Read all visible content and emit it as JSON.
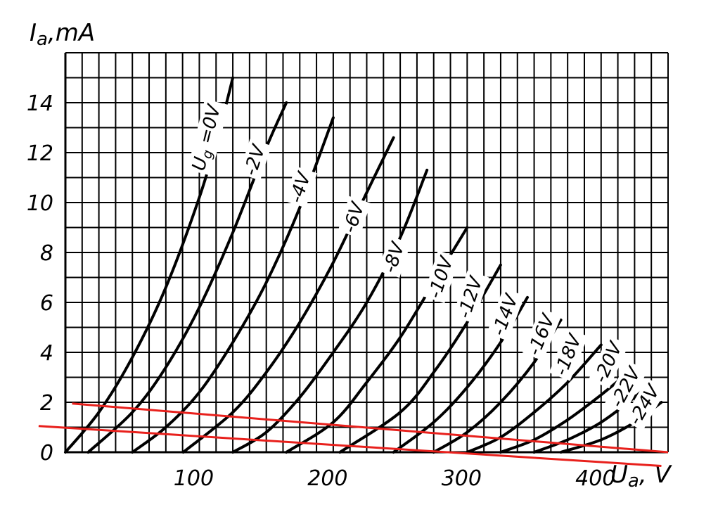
{
  "chart_data": {
    "type": "line",
    "title": "",
    "xlabel": "U",
    "xlabel_sub": "a",
    "xlabel_unit": ", V",
    "ylabel": "I",
    "ylabel_sub": "a",
    "ylabel_unit": ",mA",
    "xlim": [
      0,
      450
    ],
    "ylim": [
      0,
      16
    ],
    "grid": true,
    "x_ticks": [
      {
        "value": 100,
        "label": "100"
      },
      {
        "value": 200,
        "label": "200"
      },
      {
        "value": 300,
        "label": "300"
      },
      {
        "value": 400,
        "label": "400"
      }
    ],
    "y_ticks": [
      {
        "value": 0,
        "label": "0"
      },
      {
        "value": 2,
        "label": "2"
      },
      {
        "value": 4,
        "label": "4"
      },
      {
        "value": 6,
        "label": "6"
      },
      {
        "value": 8,
        "label": "8"
      },
      {
        "value": 10,
        "label": "10"
      },
      {
        "value": 12,
        "label": "12"
      },
      {
        "value": 14,
        "label": "14"
      }
    ],
    "series": [
      {
        "name": "Ug =0V",
        "name_prefix": "U",
        "name_sub": "g",
        "name_rest": " =0V",
        "label_at": [
          105,
          12.6
        ],
        "label_angle": -76,
        "x": [
          0,
          25,
          50,
          75,
          100,
          115,
          125
        ],
        "y": [
          0,
          1.6,
          3.8,
          6.6,
          10.2,
          12.9,
          15.0
        ]
      },
      {
        "name": "-2V",
        "label_at": [
          141,
          11.7
        ],
        "label_angle": -72,
        "x": [
          17,
          50,
          75,
          100,
          125,
          150,
          165
        ],
        "y": [
          0,
          1.6,
          3.4,
          5.8,
          8.8,
          12.2,
          14.0
        ]
      },
      {
        "name": "-4V",
        "label_at": [
          175,
          10.6
        ],
        "label_angle": -72,
        "x": [
          50,
          75,
          100,
          125,
          150,
          175,
          200
        ],
        "y": [
          0,
          1.0,
          2.4,
          4.4,
          6.8,
          9.8,
          13.4
        ]
      },
      {
        "name": "-6V",
        "label_at": [
          215,
          9.4
        ],
        "label_angle": -72,
        "x": [
          88,
          125,
          150,
          175,
          200,
          225,
          245
        ],
        "y": [
          0,
          1.6,
          3.2,
          5.2,
          7.6,
          10.4,
          12.6
        ]
      },
      {
        "name": "-8V",
        "label_at": [
          245,
          7.8
        ],
        "label_angle": -72,
        "x": [
          125,
          150,
          175,
          200,
          225,
          250,
          270
        ],
        "y": [
          0,
          0.8,
          2.2,
          4.0,
          6.0,
          8.6,
          11.3
        ]
      },
      {
        "name": "-10V",
        "label_at": [
          280,
          7.0
        ],
        "label_angle": -72,
        "x": [
          165,
          200,
          225,
          250,
          275,
          300
        ],
        "y": [
          0,
          1.2,
          2.8,
          4.6,
          6.8,
          9.0
        ]
      },
      {
        "name": "-12V",
        "label_at": [
          302,
          6.2
        ],
        "label_angle": -72,
        "x": [
          205,
          250,
          275,
          300,
          325
        ],
        "y": [
          0,
          1.6,
          3.2,
          5.2,
          7.5
        ]
      },
      {
        "name": "-14V",
        "label_at": [
          328,
          5.5
        ],
        "label_angle": -70,
        "x": [
          245,
          275,
          300,
          325,
          345
        ],
        "y": [
          0,
          1.2,
          2.6,
          4.4,
          6.2
        ]
      },
      {
        "name": "-16V",
        "label_at": [
          355,
          4.7
        ],
        "label_angle": -68,
        "x": [
          275,
          300,
          325,
          350,
          370
        ],
        "y": [
          0,
          0.8,
          2.0,
          3.6,
          5.3
        ]
      },
      {
        "name": "-18V",
        "label_at": [
          375,
          3.9
        ],
        "label_angle": -68,
        "x": [
          300,
          325,
          350,
          375,
          400
        ],
        "y": [
          0,
          0.6,
          1.6,
          2.8,
          4.3
        ]
      },
      {
        "name": "-20V",
        "label_at": [
          405,
          3.6
        ],
        "label_angle": -66,
        "x": [
          325,
          350,
          375,
          400,
          425
        ],
        "y": [
          0,
          0.5,
          1.3,
          2.3,
          3.4
        ]
      },
      {
        "name": "-22V",
        "label_at": [
          418,
          2.6
        ],
        "label_angle": -62,
        "x": [
          350,
          375,
          400,
          425,
          435
        ],
        "y": [
          0,
          0.5,
          1.2,
          2.2,
          2.7
        ]
      },
      {
        "name": "-24V",
        "label_at": [
          432,
          1.9
        ],
        "label_angle": -60,
        "x": [
          370,
          400,
          425,
          445
        ],
        "y": [
          0,
          0.5,
          1.2,
          2.0
        ]
      }
    ],
    "overlay_lines": [
      {
        "color": "#e8201c",
        "x": [
          5,
          450
        ],
        "y": [
          1.95,
          0
        ]
      },
      {
        "color": "#e8201c",
        "x": [
          -20,
          445
        ],
        "y": [
          1.05,
          -0.55
        ]
      }
    ]
  }
}
